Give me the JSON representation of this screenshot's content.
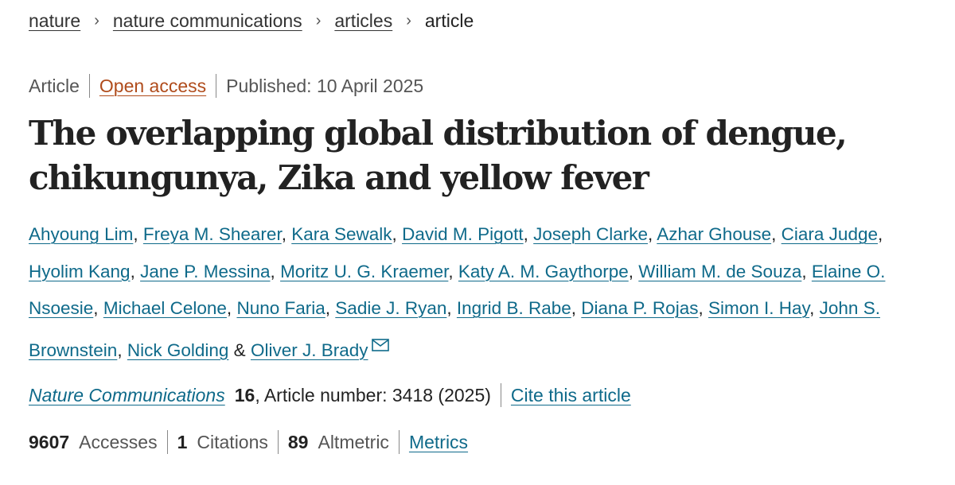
{
  "breadcrumb": {
    "items": [
      {
        "label": "nature"
      },
      {
        "label": "nature communications"
      },
      {
        "label": "articles"
      }
    ],
    "current": "article",
    "separator": "›"
  },
  "meta": {
    "type": "Article",
    "access": "Open access",
    "published": "Published: 10 April 2025"
  },
  "title": "The overlapping global distribution of dengue, chikungunya, Zika and yellow fever",
  "authors": {
    "names": [
      "Ahyoung Lim",
      "Freya M. Shearer",
      "Kara Sewalk",
      "David M. Pigott",
      "Joseph Clarke",
      "Azhar Ghouse",
      "Ciara Judge",
      "Hyolim Kang",
      "Jane P. Messina",
      "Moritz U. G. Kraemer",
      "Katy A. M. Gaythorpe",
      "William M. de Souza",
      "Elaine O. Nsoesie",
      "Michael Celone",
      "Nuno Faria",
      "Sadie J. Ryan",
      "Ingrid B. Rabe",
      "Diana P. Rojas",
      "Simon I. Hay",
      "John S. Brownstein",
      "Nick Golding",
      "Oliver J. Brady"
    ],
    "separator": ",",
    "final_separator": "&",
    "corresponding_icon": "mail-icon"
  },
  "journal": {
    "name": "Nature Communications",
    "volume": "16",
    "article_info": ", Article number: 3418 (2025)",
    "cite_label": "Cite this article"
  },
  "metrics": {
    "accesses_count": "9607",
    "accesses_label": "Accesses",
    "citations_count": "1",
    "citations_label": "Citations",
    "altmetric_count": "89",
    "altmetric_label": "Altmetric",
    "metrics_link": "Metrics"
  },
  "colors": {
    "link": "#0f6a8a",
    "open_access": "#b04c1c",
    "text": "#222222",
    "muted": "#555555"
  }
}
